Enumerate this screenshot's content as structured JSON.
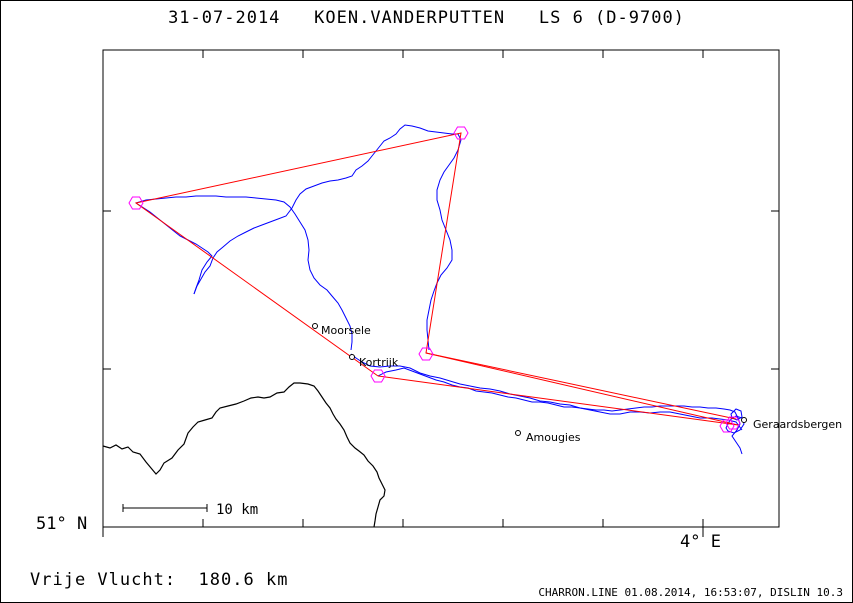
{
  "title": {
    "date": "31-07-2014",
    "pilot": "KOEN.VANDERPUTTEN",
    "glider": "LS 6 (D-9700)"
  },
  "axes": {
    "latitude_label": "51° N",
    "longitude_label": "4° E"
  },
  "scale_bar": {
    "label": "10 km"
  },
  "places": [
    {
      "name": "Moorsele"
    },
    {
      "name": "Kortrijk"
    },
    {
      "name": "Amougies"
    },
    {
      "name": "Geraardsbergen"
    }
  ],
  "distance": {
    "label": "Vrije Vlucht:",
    "value": "180.6 km"
  },
  "footer": "CHARRON.LINE 01.08.2014, 16:53:07, DISLIN 10.3",
  "colors": {
    "track": "#0000ff",
    "task": "#ff0000",
    "turnpoint": "#ff00ff",
    "border": "#000000"
  }
}
